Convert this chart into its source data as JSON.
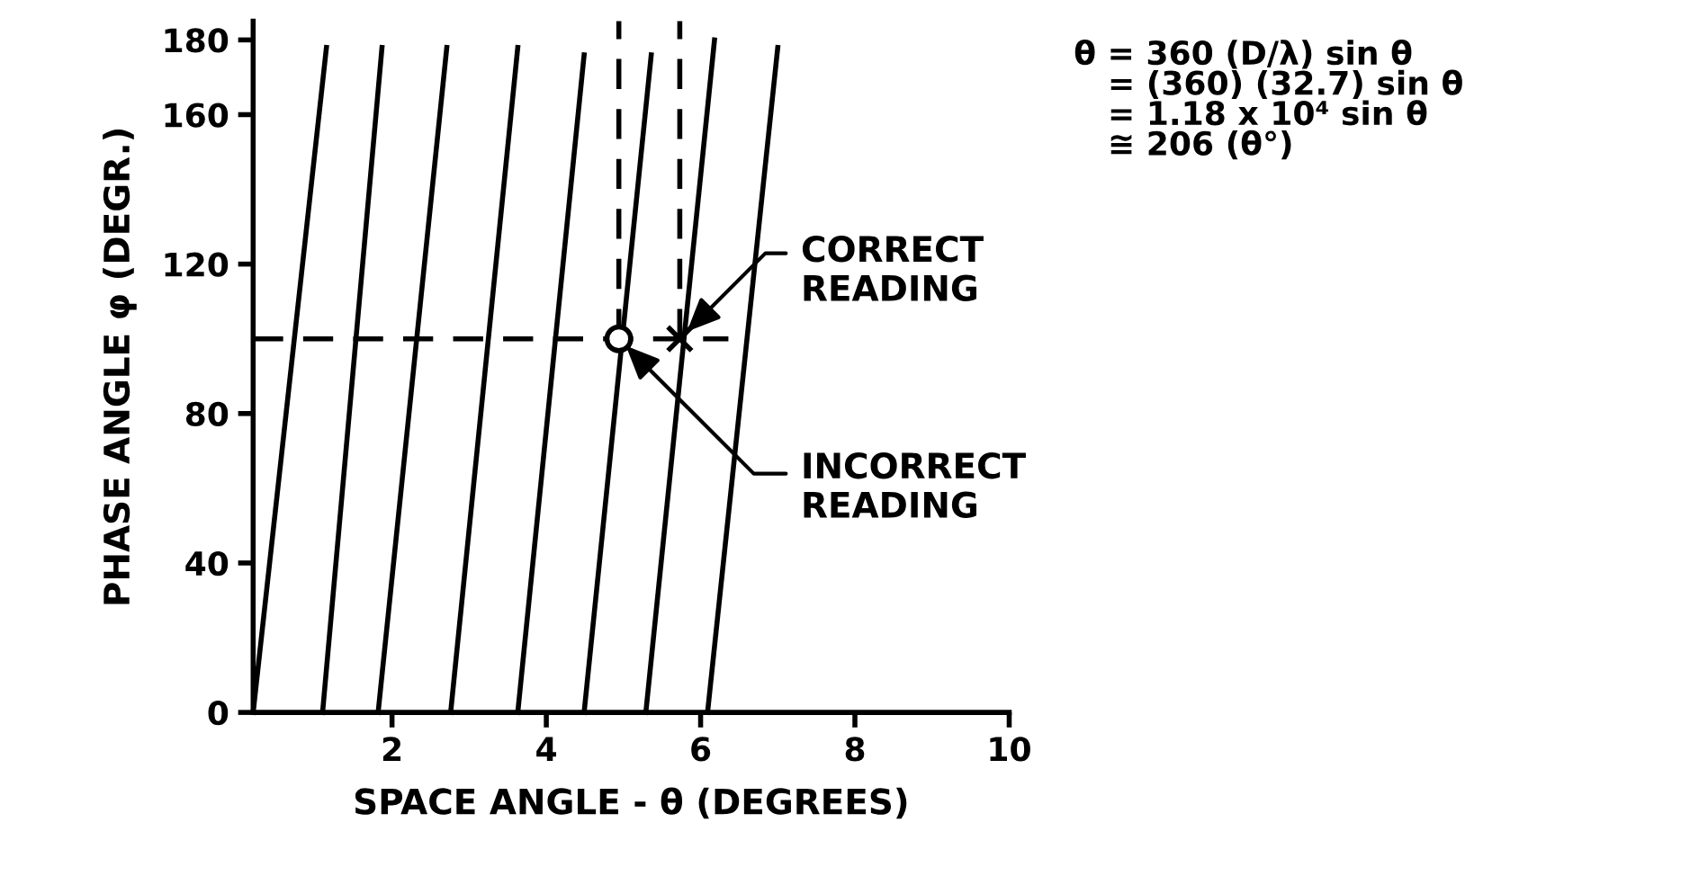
{
  "chart_data": {
    "type": "line",
    "xlabel": "SPACE ANGLE - θ (DEGREES)",
    "ylabel": "PHASE ANGLE φ (DEGR.)",
    "xlim": [
      0.2,
      10
    ],
    "xticks": [
      2,
      4,
      6,
      8,
      10
    ],
    "ylim": [
      0,
      185
    ],
    "yticks": [
      0,
      40,
      80,
      120,
      160,
      180
    ],
    "grid": false,
    "legend": false,
    "series": [
      {
        "color": "#000000",
        "x": [
          0.2,
          1.15
        ],
        "values": [
          0,
          178
        ]
      },
      {
        "color": "#000000",
        "x": [
          1.1,
          1.87
        ],
        "values": [
          0,
          178
        ]
      },
      {
        "color": "#000000",
        "x": [
          1.82,
          2.71
        ],
        "values": [
          0,
          178
        ]
      },
      {
        "color": "#000000",
        "x": [
          2.76,
          3.63
        ],
        "values": [
          0,
          178
        ]
      },
      {
        "color": "#000000",
        "x": [
          3.63,
          4.49
        ],
        "values": [
          0,
          176
        ]
      },
      {
        "color": "#000000",
        "x": [
          4.49,
          5.36
        ],
        "values": [
          0,
          176
        ]
      },
      {
        "color": "#000000",
        "x": [
          5.29,
          6.18
        ],
        "values": [
          0,
          180
        ]
      },
      {
        "color": "#000000",
        "x": [
          6.09,
          7.0
        ],
        "values": [
          0,
          178
        ]
      },
      {
        "color": "#000000",
        "x": [
          0.2,
          6.36
        ],
        "values": [
          100,
          100
        ],
        "line_style": "dashed"
      },
      {
        "color": "#000000",
        "x": [
          4.94,
          4.94
        ],
        "values": [
          100,
          185
        ],
        "line_style": "dashed"
      },
      {
        "color": "#000000",
        "x": [
          5.73,
          5.73
        ],
        "values": [
          100,
          185
        ],
        "line_style": "dashed"
      },
      {
        "type": "scatter",
        "color": "#000000",
        "x": [
          4.94
        ],
        "values": [
          100
        ],
        "marker": "circle"
      },
      {
        "type": "scatter",
        "color": "#000000",
        "x": [
          5.73
        ],
        "values": [
          100
        ],
        "marker": "cross"
      }
    ],
    "annotations": [
      {
        "text": "CORRECT\nREADING",
        "x": 5.73,
        "y": 100
      },
      {
        "text": "INCORRECT\nREADING",
        "x": 4.94,
        "y": 100
      },
      "θ = 360 (D/λ) sin θ\n   = (360) (32.7) sin θ\n   = 1.18 x 10⁴ sin θ\n   ≅ 206 (θ°)"
    ]
  }
}
